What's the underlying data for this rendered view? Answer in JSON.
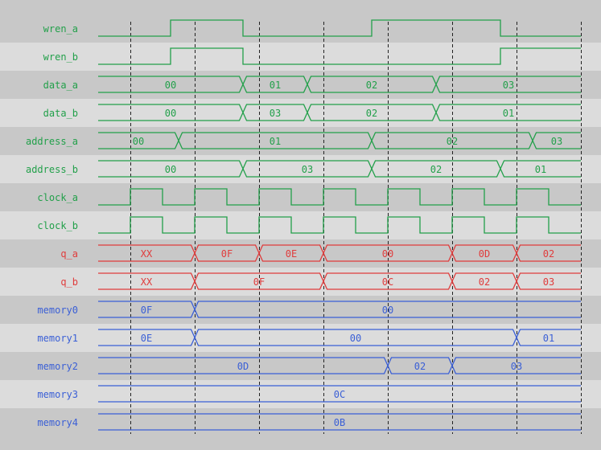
{
  "colors": {
    "control": "#22a04a",
    "output": "#e03c3c",
    "memory": "#3a5fd6",
    "row_dark": "#c8c8c8",
    "row_light": "#dcdcdc",
    "marker": "#222222"
  },
  "time_units_note_free": true,
  "markers": [
    1,
    3,
    5,
    7,
    9,
    11,
    13,
    15
  ],
  "end_time": 15,
  "signals": [
    {
      "name": "wren_a",
      "kind": "bit",
      "color": "control",
      "init": 0,
      "edges": [
        2.25,
        4.5,
        8.5,
        12.5
      ]
    },
    {
      "name": "wren_b",
      "kind": "bit",
      "color": "control",
      "init": 0,
      "edges": [
        2.25,
        4.5,
        12.5
      ]
    },
    {
      "name": "data_a",
      "kind": "bus",
      "color": "control",
      "values": [
        "00",
        "01",
        "02",
        "03"
      ],
      "changes": [
        4.5,
        6.5,
        10.5
      ]
    },
    {
      "name": "data_b",
      "kind": "bus",
      "color": "control",
      "values": [
        "00",
        "03",
        "02",
        "01"
      ],
      "changes": [
        4.5,
        6.5,
        10.5
      ]
    },
    {
      "name": "address_a",
      "kind": "bus",
      "color": "control",
      "values": [
        "00",
        "01",
        "02",
        "03"
      ],
      "changes": [
        2.5,
        8.5,
        13.5
      ]
    },
    {
      "name": "address_b",
      "kind": "bus",
      "color": "control",
      "values": [
        "00",
        "03",
        "02",
        "01"
      ],
      "changes": [
        4.5,
        8.5,
        12.5
      ]
    },
    {
      "name": "clock_a",
      "kind": "bit",
      "color": "control",
      "init": 0,
      "edges": [
        1,
        2,
        3,
        4,
        5,
        6,
        7,
        8,
        9,
        10,
        11,
        12,
        13,
        14
      ]
    },
    {
      "name": "clock_b",
      "kind": "bit",
      "color": "control",
      "init": 0,
      "edges": [
        1,
        2,
        3,
        4,
        5,
        6,
        7,
        8,
        9,
        10,
        11,
        12,
        13,
        14
      ]
    },
    {
      "name": "q_a",
      "kind": "bus",
      "color": "output",
      "values": [
        "XX",
        "0F",
        "0E",
        "00",
        "0D",
        "02"
      ],
      "changes": [
        3,
        5,
        7,
        11,
        13
      ]
    },
    {
      "name": "q_b",
      "kind": "bus",
      "color": "output",
      "values": [
        "XX",
        "0F",
        "0C",
        "02",
        "03"
      ],
      "changes": [
        3,
        7,
        11,
        13
      ]
    },
    {
      "name": "memory0",
      "kind": "bus",
      "color": "memory",
      "values": [
        "0F",
        "00"
      ],
      "changes": [
        3
      ]
    },
    {
      "name": "memory1",
      "kind": "bus",
      "color": "memory",
      "values": [
        "0E",
        "00",
        "01"
      ],
      "changes": [
        3,
        13
      ]
    },
    {
      "name": "memory2",
      "kind": "bus",
      "color": "memory",
      "values": [
        "0D",
        "02",
        "03"
      ],
      "changes": [
        9,
        11
      ]
    },
    {
      "name": "memory3",
      "kind": "bus",
      "color": "memory",
      "values": [
        "0C"
      ],
      "changes": []
    },
    {
      "name": "memory4",
      "kind": "bus",
      "color": "memory",
      "values": [
        "0B"
      ],
      "changes": []
    }
  ]
}
